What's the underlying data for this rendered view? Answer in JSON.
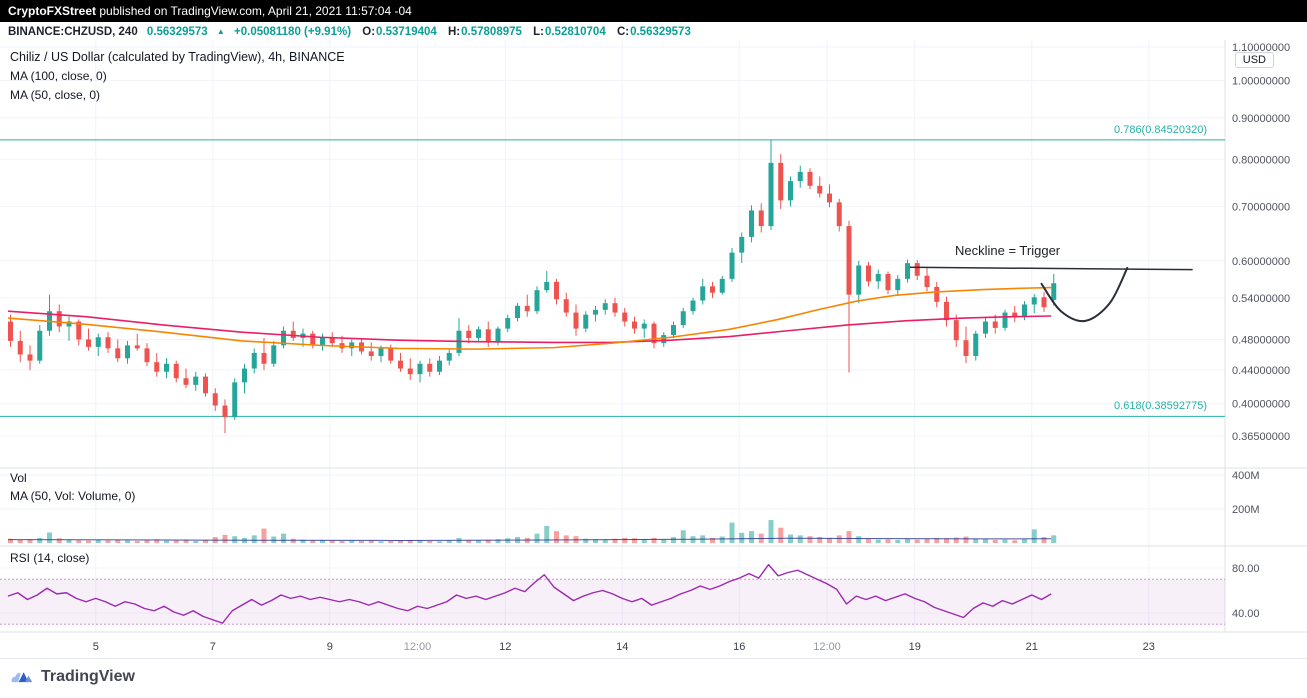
{
  "banner": {
    "brand": "CryptoFXStreet",
    "text": " published on TradingView.com, April 21, 2021 11:57:04 -04"
  },
  "symbol_bar": {
    "symbol": "BINANCE:CHZUSD, 240",
    "last_price": "0.56329573",
    "up_arrow": "▲",
    "change": "+0.05081180 (+9.91%)",
    "ohlc": [
      {
        "label": "O:",
        "value": "0.53719404"
      },
      {
        "label": "H:",
        "value": "0.57808975"
      },
      {
        "label": "L:",
        "value": "0.52810704"
      },
      {
        "label": "C:",
        "value": "0.56329573"
      }
    ]
  },
  "chart_header": {
    "title": "Chiliz / US Dollar (calculated by TradingView), 4h, BINANCE",
    "ma100_label": "MA (100, close, 0)",
    "ma50_label": "MA (50, close, 0)"
  },
  "panes": {
    "volume": {
      "label": "Vol",
      "ma_label": "MA (50, Vol: Volume, 0)"
    },
    "rsi": {
      "label": "RSI (14, close)"
    }
  },
  "price_scale": {
    "currency_label": "USD"
  },
  "footer": {
    "brand": "TradingView"
  },
  "colors": {
    "up": "#26a69a",
    "down": "#ef5350",
    "ma_fast": "#f78500",
    "ma_slow": "#e91e63",
    "rsi_line": "#9c27b0",
    "fib_line": "#26b0a6",
    "accent_text": "#0a9e96",
    "annotation": "#2a2e39",
    "volume_ma": "#283593"
  },
  "chart_data": {
    "type": "candlestick",
    "title": "Chiliz / US Dollar (calculated by TradingView), 4h, BINANCE",
    "scale": "log",
    "candles": [
      [
        0.505,
        0.515,
        0.47,
        0.478
      ],
      [
        0.478,
        0.492,
        0.45,
        0.46
      ],
      [
        0.46,
        0.472,
        0.44,
        0.452
      ],
      [
        0.452,
        0.5,
        0.448,
        0.492
      ],
      [
        0.492,
        0.545,
        0.485,
        0.52
      ],
      [
        0.52,
        0.53,
        0.49,
        0.498
      ],
      [
        0.498,
        0.512,
        0.478,
        0.505
      ],
      [
        0.505,
        0.508,
        0.472,
        0.48
      ],
      [
        0.48,
        0.495,
        0.465,
        0.47
      ],
      [
        0.47,
        0.488,
        0.458,
        0.483
      ],
      [
        0.483,
        0.49,
        0.462,
        0.468
      ],
      [
        0.468,
        0.48,
        0.45,
        0.455
      ],
      [
        0.455,
        0.478,
        0.448,
        0.472
      ],
      [
        0.472,
        0.488,
        0.465,
        0.468
      ],
      [
        0.468,
        0.475,
        0.445,
        0.45
      ],
      [
        0.45,
        0.462,
        0.432,
        0.438
      ],
      [
        0.438,
        0.455,
        0.43,
        0.448
      ],
      [
        0.448,
        0.452,
        0.425,
        0.43
      ],
      [
        0.43,
        0.442,
        0.418,
        0.422
      ],
      [
        0.422,
        0.438,
        0.415,
        0.432
      ],
      [
        0.432,
        0.436,
        0.408,
        0.412
      ],
      [
        0.412,
        0.418,
        0.392,
        0.398
      ],
      [
        0.398,
        0.405,
        0.368,
        0.385
      ],
      [
        0.385,
        0.43,
        0.382,
        0.425
      ],
      [
        0.425,
        0.448,
        0.412,
        0.442
      ],
      [
        0.442,
        0.468,
        0.436,
        0.462
      ],
      [
        0.462,
        0.482,
        0.44,
        0.448
      ],
      [
        0.448,
        0.478,
        0.444,
        0.472
      ],
      [
        0.472,
        0.498,
        0.468,
        0.492
      ],
      [
        0.492,
        0.505,
        0.478,
        0.482
      ],
      [
        0.482,
        0.495,
        0.47,
        0.488
      ],
      [
        0.488,
        0.492,
        0.468,
        0.472
      ],
      [
        0.472,
        0.488,
        0.465,
        0.483
      ],
      [
        0.483,
        0.49,
        0.47,
        0.475
      ],
      [
        0.475,
        0.485,
        0.462,
        0.468
      ],
      [
        0.468,
        0.48,
        0.458,
        0.476
      ],
      [
        0.476,
        0.482,
        0.46,
        0.464
      ],
      [
        0.464,
        0.476,
        0.452,
        0.458
      ],
      [
        0.458,
        0.472,
        0.45,
        0.468
      ],
      [
        0.468,
        0.473,
        0.448,
        0.452
      ],
      [
        0.452,
        0.462,
        0.438,
        0.442
      ],
      [
        0.442,
        0.455,
        0.428,
        0.435
      ],
      [
        0.435,
        0.452,
        0.425,
        0.448
      ],
      [
        0.448,
        0.455,
        0.432,
        0.438
      ],
      [
        0.438,
        0.458,
        0.434,
        0.452
      ],
      [
        0.452,
        0.468,
        0.446,
        0.462
      ],
      [
        0.462,
        0.51,
        0.458,
        0.492
      ],
      [
        0.492,
        0.5,
        0.475,
        0.482
      ],
      [
        0.482,
        0.498,
        0.478,
        0.494
      ],
      [
        0.494,
        0.505,
        0.47,
        0.476
      ],
      [
        0.476,
        0.498,
        0.472,
        0.495
      ],
      [
        0.495,
        0.515,
        0.49,
        0.51
      ],
      [
        0.51,
        0.532,
        0.505,
        0.528
      ],
      [
        0.528,
        0.545,
        0.512,
        0.52
      ],
      [
        0.52,
        0.558,
        0.516,
        0.552
      ],
      [
        0.552,
        0.583,
        0.548,
        0.565
      ],
      [
        0.565,
        0.57,
        0.53,
        0.538
      ],
      [
        0.538,
        0.548,
        0.512,
        0.518
      ],
      [
        0.518,
        0.53,
        0.485,
        0.495
      ],
      [
        0.495,
        0.52,
        0.49,
        0.515
      ],
      [
        0.515,
        0.528,
        0.505,
        0.522
      ],
      [
        0.522,
        0.538,
        0.515,
        0.532
      ],
      [
        0.532,
        0.54,
        0.512,
        0.518
      ],
      [
        0.518,
        0.525,
        0.498,
        0.505
      ],
      [
        0.505,
        0.512,
        0.488,
        0.495
      ],
      [
        0.495,
        0.508,
        0.482,
        0.502
      ],
      [
        0.502,
        0.505,
        0.468,
        0.475
      ],
      [
        0.475,
        0.49,
        0.47,
        0.486
      ],
      [
        0.486,
        0.505,
        0.482,
        0.5
      ],
      [
        0.5,
        0.525,
        0.496,
        0.52
      ],
      [
        0.52,
        0.54,
        0.515,
        0.536
      ],
      [
        0.536,
        0.57,
        0.53,
        0.558
      ],
      [
        0.558,
        0.565,
        0.54,
        0.548
      ],
      [
        0.548,
        0.575,
        0.545,
        0.57
      ],
      [
        0.57,
        0.622,
        0.565,
        0.614
      ],
      [
        0.614,
        0.65,
        0.596,
        0.642
      ],
      [
        0.642,
        0.702,
        0.632,
        0.692
      ],
      [
        0.692,
        0.706,
        0.65,
        0.662
      ],
      [
        0.662,
        0.845,
        0.655,
        0.792
      ],
      [
        0.792,
        0.812,
        0.695,
        0.712
      ],
      [
        0.712,
        0.762,
        0.7,
        0.752
      ],
      [
        0.752,
        0.786,
        0.738,
        0.772
      ],
      [
        0.772,
        0.78,
        0.735,
        0.742
      ],
      [
        0.742,
        0.762,
        0.718,
        0.726
      ],
      [
        0.726,
        0.745,
        0.698,
        0.708
      ],
      [
        0.708,
        0.715,
        0.652,
        0.662
      ],
      [
        0.662,
        0.672,
        0.437,
        0.545
      ],
      [
        0.545,
        0.6,
        0.532,
        0.592
      ],
      [
        0.592,
        0.598,
        0.558,
        0.566
      ],
      [
        0.566,
        0.585,
        0.554,
        0.578
      ],
      [
        0.578,
        0.582,
        0.546,
        0.552
      ],
      [
        0.552,
        0.576,
        0.544,
        0.57
      ],
      [
        0.57,
        0.602,
        0.564,
        0.596
      ],
      [
        0.596,
        0.601,
        0.568,
        0.575
      ],
      [
        0.575,
        0.588,
        0.55,
        0.557
      ],
      [
        0.557,
        0.565,
        0.526,
        0.534
      ],
      [
        0.534,
        0.542,
        0.498,
        0.507
      ],
      [
        0.507,
        0.515,
        0.47,
        0.479
      ],
      [
        0.479,
        0.498,
        0.449,
        0.458
      ],
      [
        0.458,
        0.492,
        0.452,
        0.488
      ],
      [
        0.488,
        0.512,
        0.482,
        0.505
      ],
      [
        0.505,
        0.515,
        0.488,
        0.496
      ],
      [
        0.496,
        0.522,
        0.492,
        0.518
      ],
      [
        0.518,
        0.528,
        0.504,
        0.511
      ],
      [
        0.511,
        0.535,
        0.507,
        0.53
      ],
      [
        0.53,
        0.546,
        0.517,
        0.541
      ],
      [
        0.541,
        0.549,
        0.519,
        0.526
      ],
      [
        0.537,
        0.578,
        0.528,
        0.563
      ]
    ],
    "volume_millions": [
      25,
      18,
      22,
      30,
      62,
      28,
      20,
      16,
      14,
      18,
      15,
      20,
      16,
      12,
      18,
      22,
      14,
      16,
      20,
      12,
      18,
      35,
      48,
      40,
      30,
      45,
      85,
      38,
      55,
      25,
      20,
      16,
      18,
      14,
      12,
      15,
      12,
      14,
      10,
      12,
      15,
      18,
      14,
      12,
      10,
      14,
      30,
      18,
      15,
      20,
      22,
      28,
      35,
      30,
      55,
      100,
      70,
      45,
      40,
      25,
      22,
      20,
      25,
      30,
      28,
      22,
      30,
      20,
      35,
      75,
      40,
      45,
      30,
      38,
      120,
      60,
      70,
      55,
      135,
      90,
      50,
      45,
      40,
      35,
      30,
      45,
      70,
      40,
      25,
      20,
      22,
      18,
      25,
      20,
      25,
      30,
      28,
      32,
      38,
      25,
      22,
      18,
      20,
      16,
      22,
      80,
      35,
      45
    ],
    "rsi_14": [
      55,
      58,
      52,
      56,
      62,
      57,
      58,
      53,
      50,
      53,
      50,
      46,
      50,
      48,
      44,
      42,
      46,
      41,
      38,
      42,
      37,
      34,
      31,
      42,
      47,
      52,
      47,
      51,
      56,
      53,
      55,
      52,
      54,
      52,
      50,
      52,
      50,
      47,
      50,
      47,
      44,
      42,
      46,
      44,
      47,
      50,
      56,
      53,
      55,
      52,
      55,
      58,
      62,
      59,
      67,
      74,
      63,
      57,
      51,
      55,
      58,
      60,
      57,
      53,
      50,
      53,
      47,
      50,
      53,
      57,
      60,
      64,
      61,
      64,
      68,
      71,
      75,
      71,
      83,
      73,
      76,
      78,
      74,
      70,
      66,
      61,
      48,
      55,
      52,
      55,
      51,
      54,
      57,
      53,
      50,
      45,
      42,
      39,
      36,
      44,
      49,
      46,
      51,
      48,
      52,
      56,
      52,
      57
    ],
    "ma50_close": [
      [
        0,
        0.51
      ],
      [
        8,
        0.501
      ],
      [
        16,
        0.49
      ],
      [
        24,
        0.478
      ],
      [
        32,
        0.472
      ],
      [
        40,
        0.468
      ],
      [
        48,
        0.467
      ],
      [
        56,
        0.469
      ],
      [
        62,
        0.475
      ],
      [
        68,
        0.483
      ],
      [
        74,
        0.494
      ],
      [
        79,
        0.508
      ],
      [
        83,
        0.522
      ],
      [
        87,
        0.535
      ],
      [
        91,
        0.544
      ],
      [
        95,
        0.549
      ],
      [
        100,
        0.553
      ],
      [
        104,
        0.555
      ],
      [
        107,
        0.556
      ]
    ],
    "ma100_close": [
      [
        0,
        0.52
      ],
      [
        8,
        0.512
      ],
      [
        16,
        0.5
      ],
      [
        24,
        0.49
      ],
      [
        32,
        0.483
      ],
      [
        40,
        0.479
      ],
      [
        48,
        0.477
      ],
      [
        56,
        0.476
      ],
      [
        62,
        0.476
      ],
      [
        68,
        0.479
      ],
      [
        74,
        0.484
      ],
      [
        80,
        0.492
      ],
      [
        86,
        0.5
      ],
      [
        92,
        0.506
      ],
      [
        98,
        0.51
      ],
      [
        103,
        0.512
      ],
      [
        107,
        0.513
      ]
    ],
    "volume_ma50_millions": [
      [
        0,
        20
      ],
      [
        20,
        17
      ],
      [
        40,
        15
      ],
      [
        55,
        18
      ],
      [
        70,
        22
      ],
      [
        80,
        28
      ],
      [
        90,
        26
      ],
      [
        100,
        24
      ],
      [
        107,
        25
      ]
    ],
    "fib_levels": [
      {
        "label": "0.786(0.84520320)",
        "price": 0.8452032
      },
      {
        "label": "0.618(0.38592775)",
        "price": 0.38592775
      }
    ],
    "neckline": {
      "label": "Neckline = Trigger",
      "i1": 92.5,
      "price1": 0.589,
      "i2": 121.5,
      "price2": 0.585
    },
    "handle_sketch": [
      [
        106,
        0.562
      ],
      [
        108,
        0.52
      ],
      [
        110.5,
        0.506
      ],
      [
        113,
        0.532
      ],
      [
        114.8,
        0.588
      ]
    ],
    "price_ticks": [
      {
        "label": "1.10000000",
        "value": 1.1
      },
      {
        "label": "1.00000000",
        "value": 1.0
      },
      {
        "label": "0.90000000",
        "value": 0.9
      },
      {
        "label": "0.80000000",
        "value": 0.8
      },
      {
        "label": "0.70000000",
        "value": 0.7
      },
      {
        "label": "0.60000000",
        "value": 0.6
      },
      {
        "label": "0.54000000",
        "value": 0.54
      },
      {
        "label": "0.48000000",
        "value": 0.48
      },
      {
        "label": "0.44000000",
        "value": 0.44
      },
      {
        "label": "0.40000000",
        "value": 0.4
      },
      {
        "label": "0.36500000",
        "value": 0.365
      }
    ],
    "volume_ticks": [
      {
        "label": "400M",
        "value": 400
      },
      {
        "label": "200M",
        "value": 200
      }
    ],
    "rsi_ticks": [
      {
        "label": "80.00",
        "value": 80
      },
      {
        "label": "40.00",
        "value": 40
      }
    ],
    "rsi_band": [
      30,
      70
    ],
    "time_ticks": [
      {
        "label": "5",
        "i": 9
      },
      {
        "label": "7",
        "i": 21
      },
      {
        "label": "9",
        "i": 33
      },
      {
        "label": "12:00",
        "i": 42
      },
      {
        "label": "12",
        "i": 51
      },
      {
        "label": "14",
        "i": 63
      },
      {
        "label": "16",
        "i": 75
      },
      {
        "label": "12:00",
        "i": 84
      },
      {
        "label": "19",
        "i": 93
      },
      {
        "label": "21",
        "i": 105
      },
      {
        "label": "23",
        "i": 117
      }
    ]
  }
}
